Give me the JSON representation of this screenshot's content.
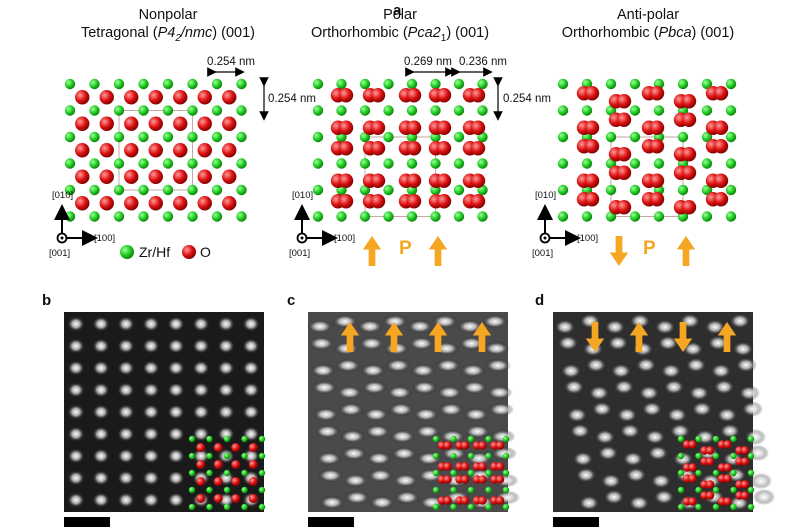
{
  "panel_letters": {
    "a": "a",
    "b": "b",
    "c": "c",
    "d": "d"
  },
  "structures": [
    {
      "line1": "Nonpolar",
      "line2_pre": "Tetragonal (",
      "line2_italic": "P4",
      "line2_sub": "2",
      "line2_italic2": "/nmc",
      "line2_post": ") (001)"
    },
    {
      "line1": "Polar",
      "line2_pre": "Orthorhombic (",
      "line2_italic": "Pca",
      "line2_sub": "",
      "line2_italic2": "",
      "line2_post": "2",
      "line2_sub2": "1",
      "line2_post2": ") (001)"
    },
    {
      "line1": "Anti-polar",
      "line2_pre": "Orthorhombic (",
      "line2_italic": "Pbca",
      "line2_sub": "",
      "line2_italic2": "",
      "line2_post": ") (001)"
    }
  ],
  "dimensions": {
    "tet_h": "0.254 nm",
    "tet_v": "0.254 nm",
    "polar_h1": "0.269 nm",
    "polar_h2": "0.236 nm",
    "polar_v": "0.254 nm"
  },
  "axes": {
    "x": "[100]",
    "y": "[010]",
    "z": "[001]"
  },
  "legend": {
    "zr": "Zr/Hf",
    "o": "O"
  },
  "polarization": {
    "label": "P"
  },
  "colors": {
    "zr": "#22cc22",
    "o": "#dd1111",
    "arrow": "#f5a623",
    "cell": "#c9a7a7"
  }
}
